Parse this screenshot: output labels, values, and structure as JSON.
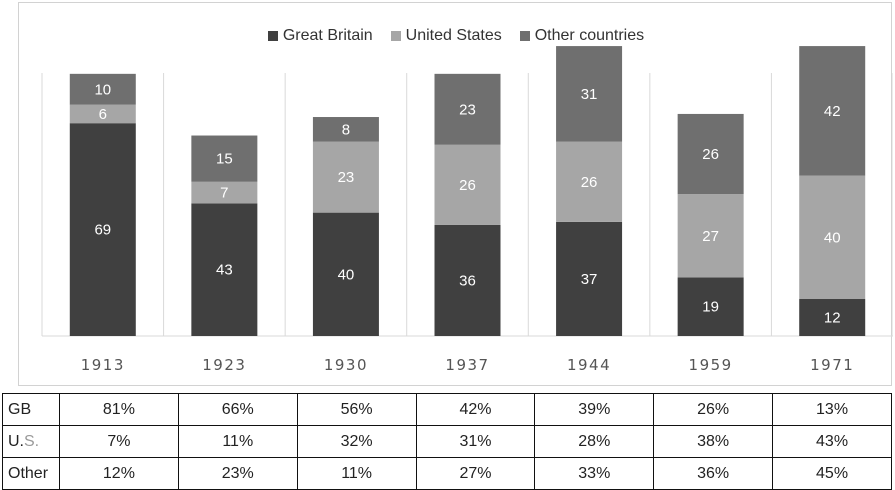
{
  "chart_data": {
    "type": "bar",
    "stacked": true,
    "categories": [
      "1913",
      "1923",
      "1930",
      "1937",
      "1944",
      "1959",
      "1971"
    ],
    "series": [
      {
        "name": "Great Britain",
        "color": "#404040",
        "values": [
          69,
          43,
          40,
          36,
          37,
          19,
          12
        ]
      },
      {
        "name": "United States",
        "color": "#a6a6a6",
        "values": [
          6,
          7,
          23,
          26,
          26,
          27,
          40
        ]
      },
      {
        "name": "Other countries",
        "color": "#6f6f6f",
        "values": [
          10,
          15,
          8,
          23,
          31,
          26,
          42
        ]
      }
    ],
    "legend_position": "top",
    "grid": "vertical separators between categories",
    "ylim": [
      0,
      95
    ]
  },
  "table": {
    "rows": [
      {
        "label": "GB",
        "values": [
          "81%",
          "66%",
          "56%",
          "42%",
          "39%",
          "26%",
          "13%"
        ]
      },
      {
        "label_part1": "U.",
        "label_part2": "S.",
        "values": [
          "7%",
          "11%",
          "32%",
          "31%",
          "28%",
          "38%",
          "43%"
        ]
      },
      {
        "label": "Other",
        "values": [
          "12%",
          "23%",
          "11%",
          "27%",
          "33%",
          "36%",
          "45%"
        ]
      }
    ]
  }
}
